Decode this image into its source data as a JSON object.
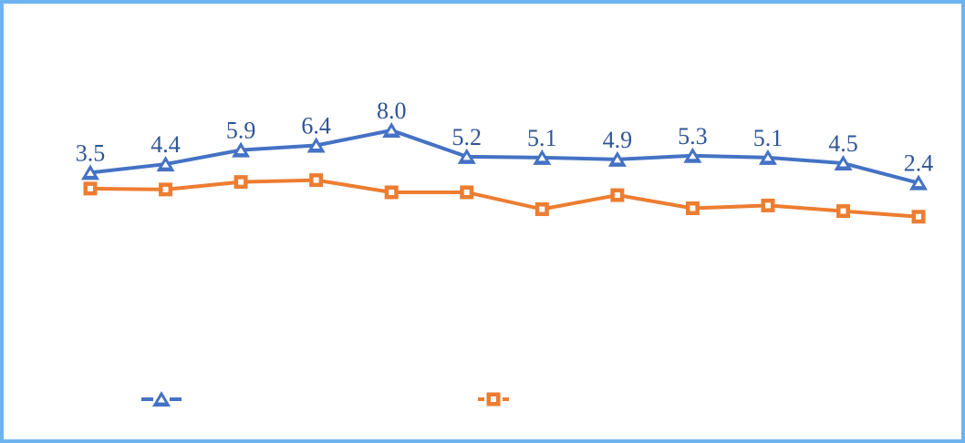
{
  "frame": {
    "border_color": "#6CB4F0",
    "background_color": "#FFFFFF"
  },
  "chart_data": {
    "type": "line",
    "title": "",
    "xlabel": "",
    "ylabel": "",
    "x": [
      1,
      2,
      3,
      4,
      5,
      6,
      7,
      8,
      9,
      10,
      11,
      12
    ],
    "grid": false,
    "axes_visible": false,
    "label_color": "#2F5597",
    "ylim": [
      -2,
      9
    ],
    "series": [
      {
        "name": "blue-triangle-series",
        "color": "#4472C4",
        "marker": "triangle",
        "marker_core_color": "#FFFFFF",
        "values": [
          3.5,
          4.4,
          5.9,
          6.4,
          8.0,
          5.2,
          5.1,
          4.9,
          5.3,
          5.1,
          4.5,
          2.4
        ],
        "data_labels": [
          "3.5",
          "4.4",
          "5.9",
          "6.4",
          "8.0",
          "5.2",
          "5.1",
          "4.9",
          "5.3",
          "5.1",
          "4.5",
          "2.4"
        ]
      },
      {
        "name": "orange-square-series",
        "color": "#ED7D31",
        "marker": "square",
        "marker_core_color": "#FFFFFF",
        "values": [
          1.8,
          1.7,
          2.5,
          2.7,
          1.4,
          1.4,
          -0.4,
          1.1,
          -0.3,
          0.0,
          -0.6,
          -1.2
        ],
        "data_labels": []
      }
    ],
    "legend": {
      "position": "bottom",
      "entries": [
        {
          "marker": "triangle",
          "color": "#4472C4",
          "label": ""
        },
        {
          "marker": "square",
          "color": "#ED7D31",
          "label": ""
        }
      ]
    }
  }
}
